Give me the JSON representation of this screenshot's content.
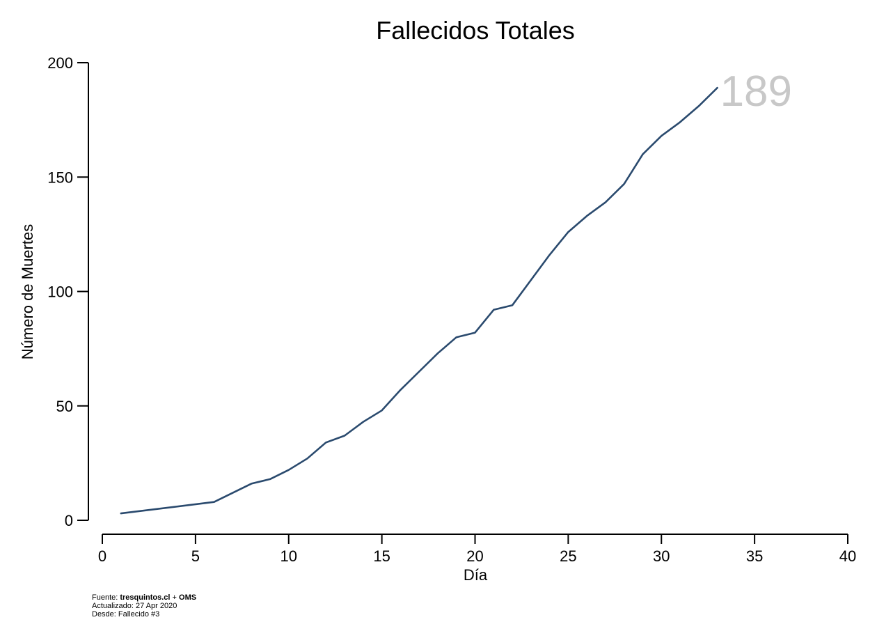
{
  "chart_data": {
    "type": "line",
    "title": "Fallecidos Totales",
    "xlabel": "Día",
    "ylabel": "Número de Muertes",
    "xlim": [
      0,
      40
    ],
    "ylim": [
      0,
      200
    ],
    "xticks": [
      0,
      5,
      10,
      15,
      20,
      25,
      30,
      35,
      40
    ],
    "yticks": [
      0,
      50,
      100,
      150,
      200
    ],
    "grid": false,
    "series": [
      {
        "color": "#2a4a6e",
        "x": [
          1,
          6,
          8,
          9,
          10,
          11,
          12,
          13,
          14,
          15,
          16,
          17,
          18,
          19,
          20,
          21,
          22,
          23,
          24,
          25,
          26,
          27,
          28,
          29,
          30,
          31,
          32,
          33
        ],
        "y": [
          3,
          8,
          16,
          18,
          22,
          27,
          34,
          37,
          43,
          48,
          57,
          65,
          73,
          80,
          82,
          92,
          94,
          105,
          116,
          126,
          133,
          139,
          147,
          160,
          168,
          174,
          181,
          189
        ]
      }
    ],
    "last_value_label": "189",
    "last_value_color": "#c8c8c8"
  },
  "footnote": {
    "source_label": "Fuente: ",
    "source_value": "tresquintos.cl",
    "source_sep": " + ",
    "source_value2": "OMS",
    "updated": "Actualizado: 27 Apr 2020",
    "since": "Desde: Fallecido #3"
  }
}
